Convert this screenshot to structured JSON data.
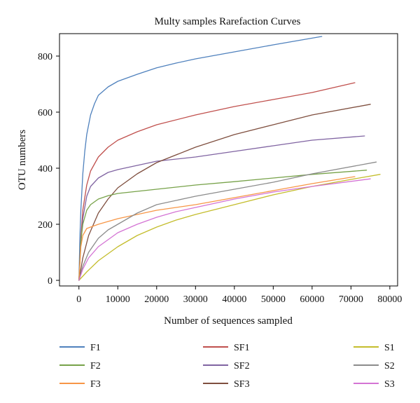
{
  "chart_data": {
    "type": "line",
    "title": "Multy samples Rarefaction Curves",
    "xlabel": "Number of sequences sampled",
    "ylabel": "OTU numbers",
    "xlim": [
      -5000,
      82000
    ],
    "ylim": [
      -20,
      880
    ],
    "xticks": [
      0,
      10000,
      20000,
      30000,
      40000,
      50000,
      60000,
      70000,
      80000
    ],
    "yticks": [
      0,
      200,
      400,
      600,
      800
    ],
    "grid": false,
    "legend_position": "bottom",
    "legend_columns": 3,
    "series": [
      {
        "name": "F1",
        "color": "#4f81bd",
        "points": [
          [
            0,
            0
          ],
          [
            250,
            150
          ],
          [
            500,
            250
          ],
          [
            1000,
            380
          ],
          [
            1500,
            460
          ],
          [
            2000,
            520
          ],
          [
            3000,
            590
          ],
          [
            4000,
            630
          ],
          [
            5000,
            660
          ],
          [
            7500,
            690
          ],
          [
            10000,
            710
          ],
          [
            15000,
            735
          ],
          [
            20000,
            758
          ],
          [
            25000,
            775
          ],
          [
            30000,
            790
          ],
          [
            40000,
            815
          ],
          [
            50000,
            840
          ],
          [
            62500,
            870
          ]
        ]
      },
      {
        "name": "SF1",
        "color": "#c0504d",
        "points": [
          [
            0,
            0
          ],
          [
            500,
            150
          ],
          [
            1000,
            250
          ],
          [
            2000,
            340
          ],
          [
            3000,
            390
          ],
          [
            5000,
            440
          ],
          [
            7500,
            475
          ],
          [
            10000,
            500
          ],
          [
            15000,
            530
          ],
          [
            20000,
            555
          ],
          [
            30000,
            590
          ],
          [
            40000,
            620
          ],
          [
            50000,
            645
          ],
          [
            60000,
            670
          ],
          [
            71000,
            705
          ]
        ]
      },
      {
        "name": "SF2",
        "color": "#8064a2",
        "points": [
          [
            0,
            0
          ],
          [
            500,
            130
          ],
          [
            1000,
            220
          ],
          [
            2000,
            300
          ],
          [
            3000,
            335
          ],
          [
            5000,
            365
          ],
          [
            7500,
            385
          ],
          [
            10000,
            395
          ],
          [
            15000,
            410
          ],
          [
            20000,
            425
          ],
          [
            30000,
            440
          ],
          [
            40000,
            460
          ],
          [
            50000,
            480
          ],
          [
            60000,
            500
          ],
          [
            73500,
            515
          ]
        ]
      },
      {
        "name": "SF3",
        "color": "#7f4f3f",
        "points": [
          [
            0,
            0
          ],
          [
            1000,
            80
          ],
          [
            2500,
            160
          ],
          [
            5000,
            240
          ],
          [
            7500,
            290
          ],
          [
            10000,
            330
          ],
          [
            15000,
            380
          ],
          [
            20000,
            420
          ],
          [
            30000,
            475
          ],
          [
            40000,
            520
          ],
          [
            50000,
            555
          ],
          [
            60000,
            590
          ],
          [
            75000,
            628
          ]
        ]
      },
      {
        "name": "F2",
        "color": "#77a249",
        "points": [
          [
            0,
            0
          ],
          [
            500,
            140
          ],
          [
            1000,
            200
          ],
          [
            2000,
            250
          ],
          [
            3000,
            270
          ],
          [
            5000,
            290
          ],
          [
            7500,
            302
          ],
          [
            10000,
            310
          ],
          [
            20000,
            325
          ],
          [
            30000,
            340
          ],
          [
            40000,
            352
          ],
          [
            50000,
            365
          ],
          [
            60000,
            378
          ],
          [
            74000,
            393
          ]
        ]
      },
      {
        "name": "F3",
        "color": "#f79646",
        "points": [
          [
            0,
            0
          ],
          [
            500,
            120
          ],
          [
            1000,
            160
          ],
          [
            2000,
            185
          ],
          [
            3000,
            190
          ],
          [
            5000,
            200
          ],
          [
            7500,
            210
          ],
          [
            10000,
            220
          ],
          [
            20000,
            250
          ],
          [
            30000,
            270
          ],
          [
            40000,
            295
          ],
          [
            50000,
            320
          ],
          [
            60000,
            345
          ],
          [
            71000,
            370
          ]
        ]
      },
      {
        "name": "S1",
        "color": "#c4bd2c",
        "points": [
          [
            0,
            0
          ],
          [
            2000,
            30
          ],
          [
            5000,
            70
          ],
          [
            10000,
            120
          ],
          [
            15000,
            160
          ],
          [
            20000,
            190
          ],
          [
            25000,
            215
          ],
          [
            30000,
            235
          ],
          [
            40000,
            270
          ],
          [
            50000,
            305
          ],
          [
            60000,
            335
          ],
          [
            70000,
            360
          ],
          [
            77500,
            378
          ]
        ]
      },
      {
        "name": "S2",
        "color": "#8c8c8c",
        "points": [
          [
            0,
            0
          ],
          [
            1000,
            50
          ],
          [
            2500,
            100
          ],
          [
            5000,
            150
          ],
          [
            7500,
            180
          ],
          [
            10000,
            200
          ],
          [
            15000,
            240
          ],
          [
            20000,
            270
          ],
          [
            30000,
            300
          ],
          [
            40000,
            325
          ],
          [
            50000,
            350
          ],
          [
            60000,
            380
          ],
          [
            76500,
            422
          ]
        ]
      },
      {
        "name": "S3",
        "color": "#d474d4",
        "points": [
          [
            0,
            0
          ],
          [
            1000,
            40
          ],
          [
            2500,
            80
          ],
          [
            5000,
            120
          ],
          [
            10000,
            170
          ],
          [
            15000,
            200
          ],
          [
            20000,
            225
          ],
          [
            25000,
            245
          ],
          [
            30000,
            260
          ],
          [
            40000,
            290
          ],
          [
            50000,
            315
          ],
          [
            60000,
            335
          ],
          [
            75000,
            362
          ]
        ]
      }
    ]
  },
  "legend": [
    {
      "label": "F1",
      "color": "#4f81bd"
    },
    {
      "label": "SF1",
      "color": "#c0504d"
    },
    {
      "label": "S1",
      "color": "#c4bd2c"
    },
    {
      "label": "F2",
      "color": "#77a249"
    },
    {
      "label": "SF2",
      "color": "#8064a2"
    },
    {
      "label": "S2",
      "color": "#8c8c8c"
    },
    {
      "label": "F3",
      "color": "#f79646"
    },
    {
      "label": "SF3",
      "color": "#7f4f3f"
    },
    {
      "label": "S3",
      "color": "#d474d4"
    }
  ]
}
